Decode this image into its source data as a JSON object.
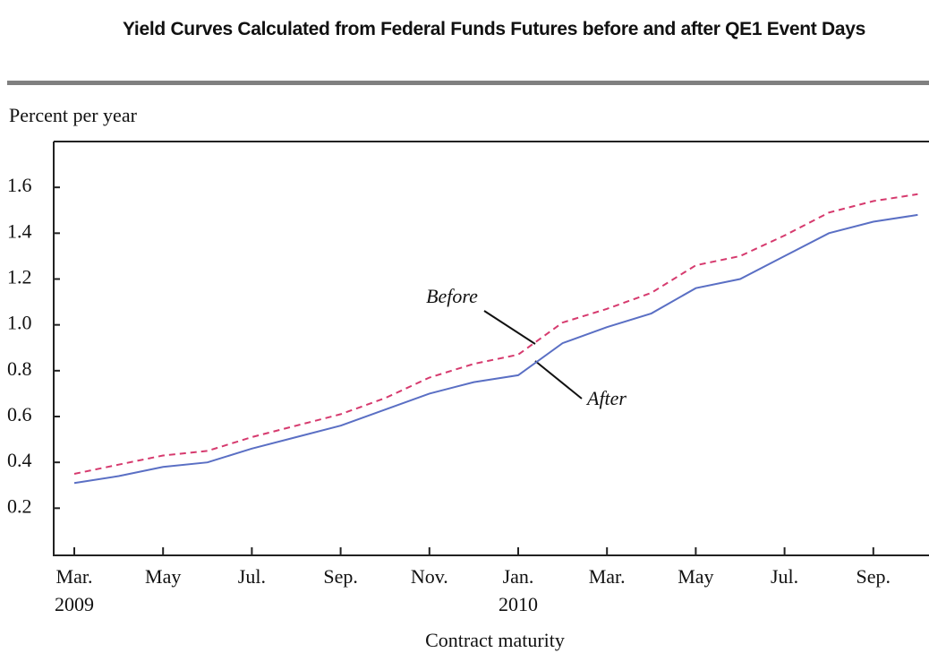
{
  "chart_data": {
    "type": "line",
    "title": "Yield Curves Calculated from Federal Funds Futures before and after QE1 Event Days",
    "y_label": "Percent per year",
    "x_label": "Contract maturity",
    "categories": [
      "Mar.",
      null,
      "May",
      null,
      "Jul.",
      null,
      "Sep.",
      null,
      "Nov.",
      null,
      "Jan.",
      null,
      "Mar.",
      null,
      "May",
      null,
      "Jul.",
      null,
      "Sep.",
      null
    ],
    "category_years": [
      "2009",
      null,
      null,
      null,
      null,
      null,
      null,
      null,
      null,
      null,
      "2010",
      null,
      null,
      null,
      null,
      null,
      null,
      null,
      null,
      null
    ],
    "series": [
      {
        "name": "Before",
        "color": "#d63a6e",
        "dashed": true,
        "values": [
          0.35,
          0.39,
          0.43,
          0.45,
          0.51,
          0.56,
          0.61,
          0.68,
          0.77,
          0.83,
          0.87,
          1.01,
          1.07,
          1.14,
          1.26,
          1.3,
          1.39,
          1.49,
          1.54,
          1.57
        ]
      },
      {
        "name": "After",
        "color": "#5a6fc4",
        "dashed": false,
        "values": [
          0.31,
          0.34,
          0.38,
          0.4,
          0.46,
          0.51,
          0.56,
          0.63,
          0.7,
          0.75,
          0.78,
          0.92,
          0.99,
          1.05,
          1.16,
          1.2,
          1.3,
          1.4,
          1.45,
          1.48
        ]
      }
    ],
    "ylim": [
      0,
      1.8
    ],
    "yticks": [
      0.2,
      0.4,
      0.6,
      0.8,
      {
        "value": 1,
        "label": "1.0"
      },
      1.2,
      1.4,
      1.6
    ]
  }
}
